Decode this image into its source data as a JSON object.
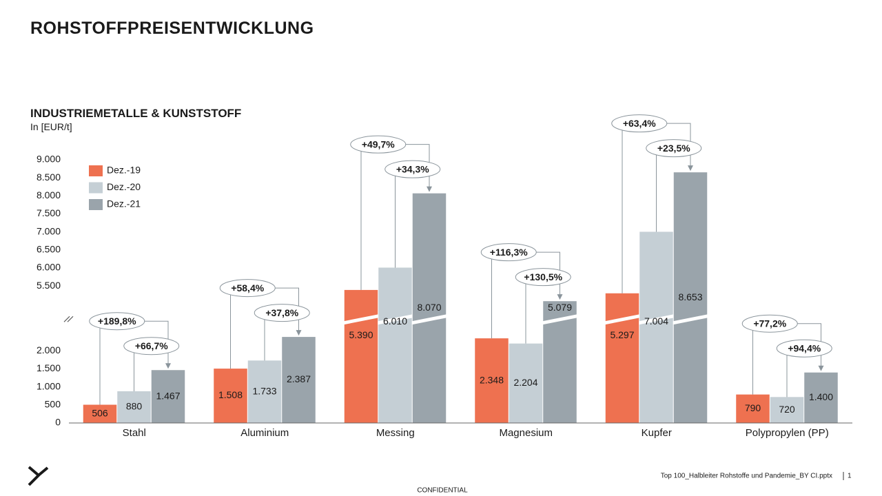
{
  "header": {
    "title": "ROHSTOFFPREISENTWICKLUNG"
  },
  "chart_data": {
    "type": "bar",
    "title": "INDUSTRIEMETALLE & KUNSTSTOFF",
    "subtitle": "In [EUR/t]",
    "categories": [
      "Stahl",
      "Aluminium",
      "Messing",
      "Magnesium",
      "Kupfer",
      "Polypropylen (PP)"
    ],
    "series": [
      {
        "name": "Dez.-19",
        "color": "#ee7150",
        "label_color": "#ffffff",
        "values": [
          506,
          1508,
          5390,
          2348,
          5297,
          790
        ],
        "value_labels": [
          "506",
          "1.508",
          "5.390",
          "2.348",
          "5.297",
          "790"
        ]
      },
      {
        "name": "Dez.-20",
        "color": "#c5cfd5",
        "label_color": "#1a1a1a",
        "values": [
          880,
          1733,
          6010,
          2204,
          7004,
          720
        ],
        "value_labels": [
          "880",
          "1.733",
          "6.010",
          "2.204",
          "7.004",
          "720"
        ]
      },
      {
        "name": "Dez.-21",
        "color": "#9aa4ab",
        "label_color": "#1a1a1a",
        "values": [
          1467,
          2387,
          8070,
          5079,
          8653,
          1400
        ],
        "value_labels": [
          "1.467",
          "2.387",
          "8.070",
          "5.079",
          "8.653",
          "1.400"
        ]
      }
    ],
    "changes": [
      [
        "+189,8%",
        "+66,7%"
      ],
      [
        "+58,4%",
        "+37,8%"
      ],
      [
        "+49,7%",
        "+34,3%"
      ],
      [
        "+116,3%",
        "+130,5%"
      ],
      [
        "+63,4%",
        "+23,5%"
      ],
      [
        "+77,2%",
        "+94,4%"
      ]
    ],
    "ylim": [
      0,
      9000
    ],
    "axis_break": [
      2900,
      4600
    ],
    "yticks": [
      0,
      500,
      {
        "value": 1000,
        "label": "1.000"
      },
      {
        "value": 1500,
        "label": "1.500"
      },
      {
        "value": 2000,
        "label": "2.000"
      },
      {
        "value": 5500,
        "label": "5.500"
      },
      {
        "value": 6000,
        "label": "6.000"
      },
      {
        "value": 6500,
        "label": "6.500"
      },
      {
        "value": 7000,
        "label": "7.000"
      },
      {
        "value": 7500,
        "label": "7.500"
      },
      {
        "value": 8000,
        "label": "8.000"
      },
      {
        "value": 8500,
        "label": "8.500"
      },
      {
        "value": 9000,
        "label": "9.000"
      }
    ],
    "grid": false,
    "legend": "top-left"
  },
  "footer": {
    "file": "Top 100_Halbleiter Rohstoffe und Pandemie_BY CI.pptx",
    "page": "1",
    "confidential": "CONFIDENTIAL"
  }
}
